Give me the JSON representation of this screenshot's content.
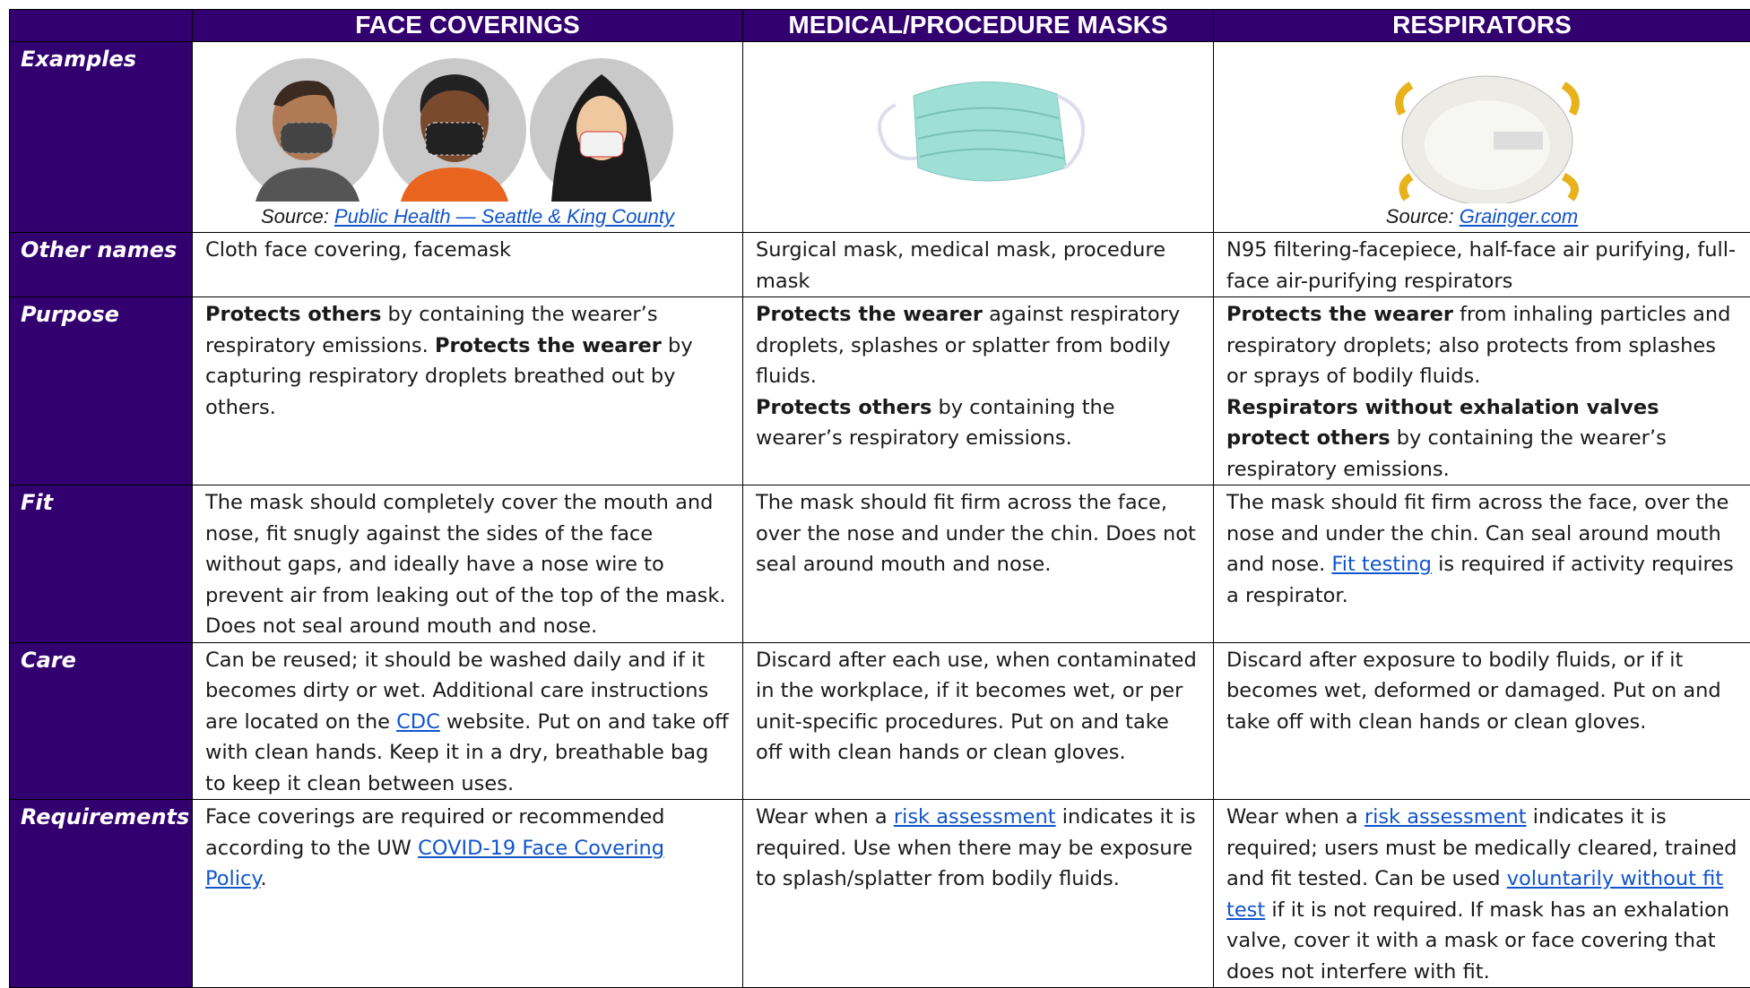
{
  "header": {
    "columns": [
      "FACE COVERINGS",
      "MEDICAL/PROCEDURE MASKS",
      "RESPIRATORS"
    ]
  },
  "examples": {
    "label": "Examples",
    "sources": [
      [
        {
          "text": "Source: "
        },
        {
          "text": "Public Health — Seattle & King County",
          "link": true
        }
      ],
      null,
      [
        {
          "text": "Source: "
        },
        {
          "text": "Grainger.com",
          "link": true
        }
      ]
    ]
  },
  "rows": [
    {
      "label": "Other names",
      "cells": [
        [
          [
            {
              "text": "Cloth face covering, facemask"
            }
          ]
        ],
        [
          [
            {
              "text": "Surgical mask, medical mask, procedure mask"
            }
          ]
        ],
        [
          [
            {
              "text": "N95 filtering-facepiece, half-face air purifying, full-face air-purifying respirators"
            }
          ]
        ]
      ]
    },
    {
      "label": "Purpose",
      "cells": [
        [
          [
            {
              "text": "Protects others",
              "bold": true
            },
            {
              "text": " by containing the wearer’s respiratory emissions. "
            },
            {
              "text": "Protects the wearer",
              "bold": true
            },
            {
              "text": " by capturing respiratory droplets breathed out by others."
            }
          ]
        ],
        [
          [
            {
              "text": "Protects the wearer",
              "bold": true
            },
            {
              "text": " against respiratory droplets, splashes or splatter from bodily fluids."
            }
          ],
          [
            {
              "text": "Protects others",
              "bold": true
            },
            {
              "text": " by containing the wearer’s respiratory emissions."
            }
          ]
        ],
        [
          [
            {
              "text": "Protects the wearer",
              "bold": true
            },
            {
              "text": " from inhaling particles and respiratory droplets; also protects from splashes or sprays of bodily fluids."
            }
          ],
          [
            {
              "text": "Respirators without exhalation valves protect others",
              "bold": true
            },
            {
              "text": " by containing the wearer’s respiratory emissions."
            }
          ]
        ]
      ]
    },
    {
      "label": "Fit",
      "cells": [
        [
          [
            {
              "text": "The mask should completely cover the mouth and nose, fit snugly against the sides of the face without gaps, and ideally have a nose wire to prevent air from leaking out of the top of the mask. Does not seal around mouth and nose."
            }
          ]
        ],
        [
          [
            {
              "text": "The mask should fit firm across the face, over the nose and under the chin. Does not seal around mouth and nose."
            }
          ]
        ],
        [
          [
            {
              "text": "The mask should fit firm across the face, over the nose and under the chin. Can seal around mouth and nose. "
            },
            {
              "text": "Fit testing",
              "link": true
            },
            {
              "text": " is required if activity requires a respirator."
            }
          ]
        ]
      ]
    },
    {
      "label": "Care",
      "cells": [
        [
          [
            {
              "text": "Can be reused; it should be washed daily and if it becomes dirty or wet. Additional care instructions are located on the "
            },
            {
              "text": "CDC",
              "link": true
            },
            {
              "text": " website. Put on and take off with clean hands. Keep it in a dry, breathable bag to keep it clean between uses."
            }
          ]
        ],
        [
          [
            {
              "text": "Discard after each use, when contaminated in the workplace, if it becomes wet, or per unit-specific procedures. Put on and take off with clean hands or clean gloves."
            }
          ]
        ],
        [
          [
            {
              "text": "Discard after exposure to bodily fluids, or if it becomes wet, deformed or damaged. Put on and take off with clean hands or clean gloves."
            }
          ]
        ]
      ]
    },
    {
      "label": "Requirements",
      "cells": [
        [
          [
            {
              "text": "Face coverings are required or recommended according to the UW "
            },
            {
              "text": "COVID-19 Face Covering Policy",
              "link": true
            },
            {
              "text": "."
            }
          ]
        ],
        [
          [
            {
              "text": "Wear when a "
            },
            {
              "text": "risk assessment",
              "link": true
            },
            {
              "text": " indicates it is required. Use when there may be exposure to splash/splatter from bodily fluids."
            }
          ]
        ],
        [
          [
            {
              "text": "Wear when a "
            },
            {
              "text": "risk assessment",
              "link": true
            },
            {
              "text": " indicates it is required; users must be medically cleared, trained and fit tested. Can be used "
            },
            {
              "text": "voluntarily without fit test",
              "link": true
            },
            {
              "text": " if it is not required. If mask has an exhalation valve, cover it with a mask or face covering that does not interfere with fit."
            }
          ]
        ]
      ]
    }
  ]
}
